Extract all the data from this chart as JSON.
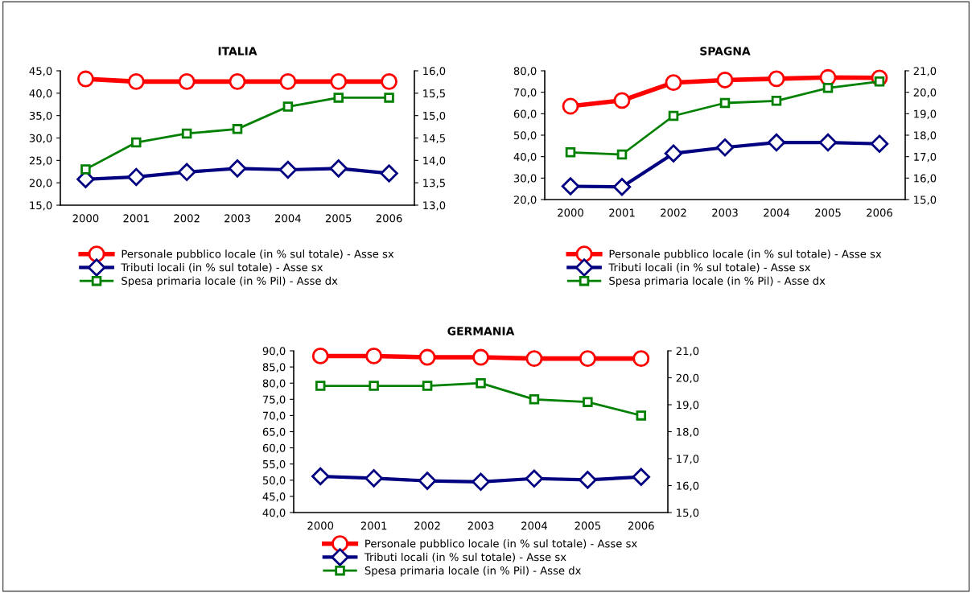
{
  "chart_data": [
    {
      "type": "line",
      "title": "ITALIA",
      "categories": [
        "2000",
        "2001",
        "2002",
        "2003",
        "2004",
        "2005",
        "2006"
      ],
      "ylim": [
        15,
        45
      ],
      "yticks": [
        {
          "value": 15,
          "label": "15,0"
        },
        {
          "value": 20,
          "label": "20,0"
        },
        {
          "value": 25,
          "label": "25,0"
        },
        {
          "value": 30,
          "label": "30,0"
        },
        {
          "value": 35,
          "label": "35,0"
        },
        {
          "value": 40,
          "label": "40,0"
        },
        {
          "value": 45,
          "label": "45,0"
        }
      ],
      "y2lim": [
        13,
        16
      ],
      "y2ticks": [
        {
          "value": 13,
          "label": "13,0"
        },
        {
          "value": 13.5,
          "label": "13,5"
        },
        {
          "value": 14,
          "label": "14,0"
        },
        {
          "value": 14.5,
          "label": "14,5"
        },
        {
          "value": 15,
          "label": "15,0"
        },
        {
          "value": 15.5,
          "label": "15,5"
        },
        {
          "value": 16,
          "label": "16,0"
        }
      ],
      "legend": "bottom",
      "grid": false,
      "series": [
        {
          "name": "Personale pubblico locale (in % sul totale) - Asse sx",
          "color": "#ff0000",
          "marker": "circle",
          "values": [
            43.2,
            42.6,
            42.6,
            42.6,
            42.6,
            42.6,
            42.6
          ]
        },
        {
          "name": "Tributi locali (in % sul totale) - Asse sx",
          "color": "#000080",
          "marker": "diamond",
          "values": [
            20.8,
            21.3,
            22.4,
            23.2,
            22.9,
            23.2,
            22.1
          ]
        },
        {
          "name": "Spesa primaria locale (in % Pil) - Asse dx",
          "color": "#008000",
          "marker": "square",
          "axis": "y2",
          "values": [
            13.8,
            14.4,
            14.6,
            14.7,
            15.2,
            15.4,
            15.4
          ]
        }
      ]
    },
    {
      "type": "line",
      "title": "SPAGNA",
      "categories": [
        "2000",
        "2001",
        "2002",
        "2003",
        "2004",
        "2005",
        "2006"
      ],
      "ylim": [
        20,
        80
      ],
      "yticks": [
        {
          "value": 20,
          "label": "20,0"
        },
        {
          "value": 30,
          "label": "30,0"
        },
        {
          "value": 40,
          "label": "40,0"
        },
        {
          "value": 50,
          "label": "50,0"
        },
        {
          "value": 60,
          "label": "60,0"
        },
        {
          "value": 70,
          "label": "70,0"
        },
        {
          "value": 80,
          "label": "80,0"
        }
      ],
      "y2lim": [
        15,
        21
      ],
      "y2ticks": [
        {
          "value": 15,
          "label": "15,0"
        },
        {
          "value": 16,
          "label": "16,0"
        },
        {
          "value": 17,
          "label": "17,0"
        },
        {
          "value": 18,
          "label": "18,0"
        },
        {
          "value": 19,
          "label": "19,0"
        },
        {
          "value": 20,
          "label": "20,0"
        },
        {
          "value": 21,
          "label": "21,0"
        }
      ],
      "legend": "bottom",
      "grid": false,
      "series": [
        {
          "name": "Personale pubblico locale (in % sul totale) - Asse sx",
          "color": "#ff0000",
          "marker": "circle",
          "values": [
            63.5,
            66.2,
            74.5,
            75.7,
            76.3,
            76.9,
            76.7
          ]
        },
        {
          "name": "Tributi locali (in % sul totale) - Asse sx",
          "color": "#000080",
          "marker": "diamond",
          "values": [
            26.2,
            25.9,
            41.5,
            44.3,
            46.6,
            46.6,
            46.0
          ]
        },
        {
          "name": "Spesa primaria locale (in % Pil) - Asse dx",
          "color": "#008000",
          "marker": "square",
          "axis": "y2",
          "values": [
            17.2,
            17.1,
            18.9,
            19.5,
            19.6,
            20.2,
            20.5
          ]
        }
      ]
    },
    {
      "type": "line",
      "title": "GERMANIA",
      "categories": [
        "2000",
        "2001",
        "2002",
        "2003",
        "2004",
        "2005",
        "2006"
      ],
      "ylim": [
        40,
        90
      ],
      "yticks": [
        {
          "value": 40,
          "label": "40,0"
        },
        {
          "value": 45,
          "label": "45,0"
        },
        {
          "value": 50,
          "label": "50,0"
        },
        {
          "value": 55,
          "label": "55,0"
        },
        {
          "value": 60,
          "label": "60,0"
        },
        {
          "value": 65,
          "label": "65,0"
        },
        {
          "value": 70,
          "label": "70,0"
        },
        {
          "value": 75,
          "label": "75,0"
        },
        {
          "value": 80,
          "label": "80,0"
        },
        {
          "value": 85,
          "label": "85,0"
        },
        {
          "value": 90,
          "label": "90,0"
        }
      ],
      "y2lim": [
        15,
        21
      ],
      "y2ticks": [
        {
          "value": 15,
          "label": "15,0"
        },
        {
          "value": 16,
          "label": "16,0"
        },
        {
          "value": 17,
          "label": "17,0"
        },
        {
          "value": 18,
          "label": "18,0"
        },
        {
          "value": 19,
          "label": "19,0"
        },
        {
          "value": 20,
          "label": "20,0"
        },
        {
          "value": 21,
          "label": "21,0"
        }
      ],
      "legend": "bottom",
      "grid": false,
      "series": [
        {
          "name": "Personale pubblico locale (in % sul totale) - Asse sx",
          "color": "#ff0000",
          "marker": "circle",
          "values": [
            88.4,
            88.4,
            88.0,
            88.0,
            87.6,
            87.6,
            87.6
          ]
        },
        {
          "name": "Tributi locali (in % sul totale) - Asse sx",
          "color": "#000080",
          "marker": "diamond",
          "values": [
            51.2,
            50.6,
            49.8,
            49.5,
            50.5,
            50.1,
            51.0
          ]
        },
        {
          "name": "Spesa primaria locale (in % Pil) - Asse dx",
          "color": "#008000",
          "marker": "square",
          "axis": "y2",
          "values": [
            19.7,
            19.7,
            19.7,
            19.8,
            19.2,
            19.1,
            18.6
          ]
        }
      ]
    }
  ]
}
